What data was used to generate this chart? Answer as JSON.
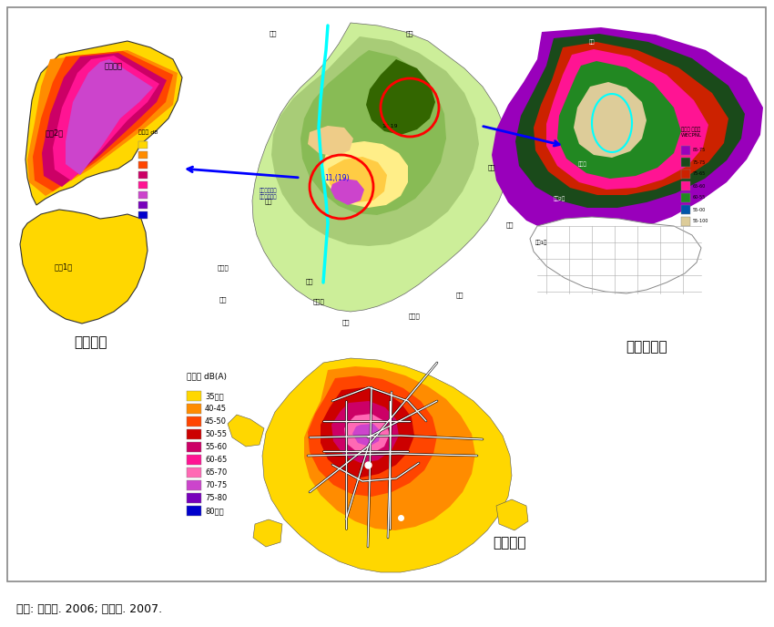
{
  "figure_width": 8.5,
  "figure_height": 6.88,
  "dpi": 100,
  "bg_color": "#ffffff",
  "border_color": "#888888",
  "source_text": "출처: 이병찬. 2006; 청주시. 2007.",
  "source_fontsize": 9,
  "label_cheoldo": "철도소음",
  "label_hangong": "항공기소음",
  "label_doro": "도로소음",
  "label_fontsize": 11,
  "legend_title": "소음도 dB(A)",
  "legend_items": [
    {
      "label": "35이하",
      "color": "#FFD700"
    },
    {
      "label": "40-45",
      "color": "#FF8C00"
    },
    {
      "label": "45-50",
      "color": "#FF4500"
    },
    {
      "label": "50-55",
      "color": "#CC0000"
    },
    {
      "label": "55-60",
      "color": "#CC0066"
    },
    {
      "label": "60-65",
      "color": "#FF1493"
    },
    {
      "label": "65-70",
      "color": "#FF69B4"
    },
    {
      "label": "70-75",
      "color": "#CC44CC"
    },
    {
      "label": "75-80",
      "color": "#7700BB"
    },
    {
      "label": "80이상",
      "color": "#0000CC"
    }
  ]
}
